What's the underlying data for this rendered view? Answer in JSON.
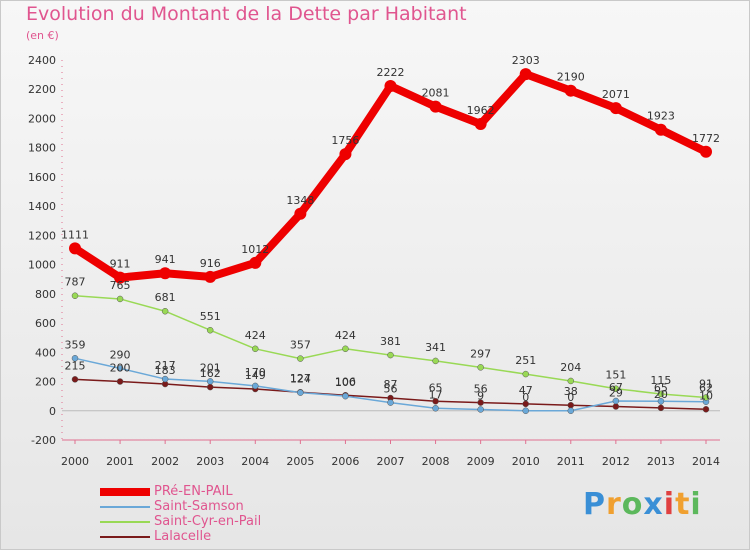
{
  "title": "Evolution du Montant de la Dette par Habitant",
  "subtitle": "(en €)",
  "logo": "Proxiti",
  "chart_data": {
    "type": "line",
    "title": "Evolution du Montant de la Dette par Habitant",
    "subtitle": "(en €)",
    "x": [
      "2000",
      "2001",
      "2002",
      "2003",
      "2004",
      "2005",
      "2006",
      "2007",
      "2008",
      "2009",
      "2010",
      "2011",
      "2012",
      "2013",
      "2014"
    ],
    "ylim": [
      -200,
      2400
    ],
    "yticks": [
      -200,
      0,
      200,
      400,
      600,
      800,
      1000,
      1200,
      1400,
      1600,
      1800,
      2000,
      2200,
      2400
    ],
    "grid": false,
    "legend_position": "bottom-left",
    "series": [
      {
        "name": "PRé-EN-PAIL",
        "color": "#ee0000",
        "values": [
          1111,
          911,
          941,
          916,
          1012,
          1348,
          1756,
          2222,
          2081,
          1962,
          2303,
          2190,
          2071,
          1923,
          1772
        ],
        "labels": [
          "1111",
          "911",
          "941",
          "916",
          "1012",
          "1348",
          "1756",
          "2222",
          "2081",
          "1962",
          "2303",
          "2190",
          "2071",
          "1923",
          "1772"
        ]
      },
      {
        "name": "Saint-Samson",
        "color": "#6aa8d8",
        "values": [
          359,
          290,
          217,
          201,
          170,
          124,
          100,
          56,
          17,
          9,
          0,
          0,
          67,
          65,
          62
        ],
        "labels": [
          "359",
          "290",
          "217",
          "201",
          "170",
          "124",
          "100",
          "56",
          "17",
          "9",
          "0",
          "0",
          "67",
          "65",
          "62"
        ]
      },
      {
        "name": "Saint-Cyr-en-Pail",
        "color": "#99d955",
        "values": [
          787,
          765,
          681,
          551,
          424,
          357,
          424,
          381,
          341,
          297,
          251,
          204,
          151,
          115,
          91
        ],
        "labels": [
          "787",
          "765",
          "681",
          "551",
          "424",
          "357",
          "424",
          "381",
          "341",
          "297",
          "251",
          "204",
          "151",
          "115",
          "91"
        ]
      },
      {
        "name": "Lalacelle",
        "color": "#7a1a1a",
        "values": [
          215,
          200,
          183,
          162,
          149,
          127,
          106,
          87,
          65,
          56,
          47,
          38,
          29,
          20,
          10
        ],
        "labels": [
          "215",
          "200",
          "183",
          "162",
          "149",
          "127",
          "106",
          "87",
          "65",
          "56",
          "47",
          "38",
          "29",
          "20",
          "10"
        ]
      }
    ]
  }
}
